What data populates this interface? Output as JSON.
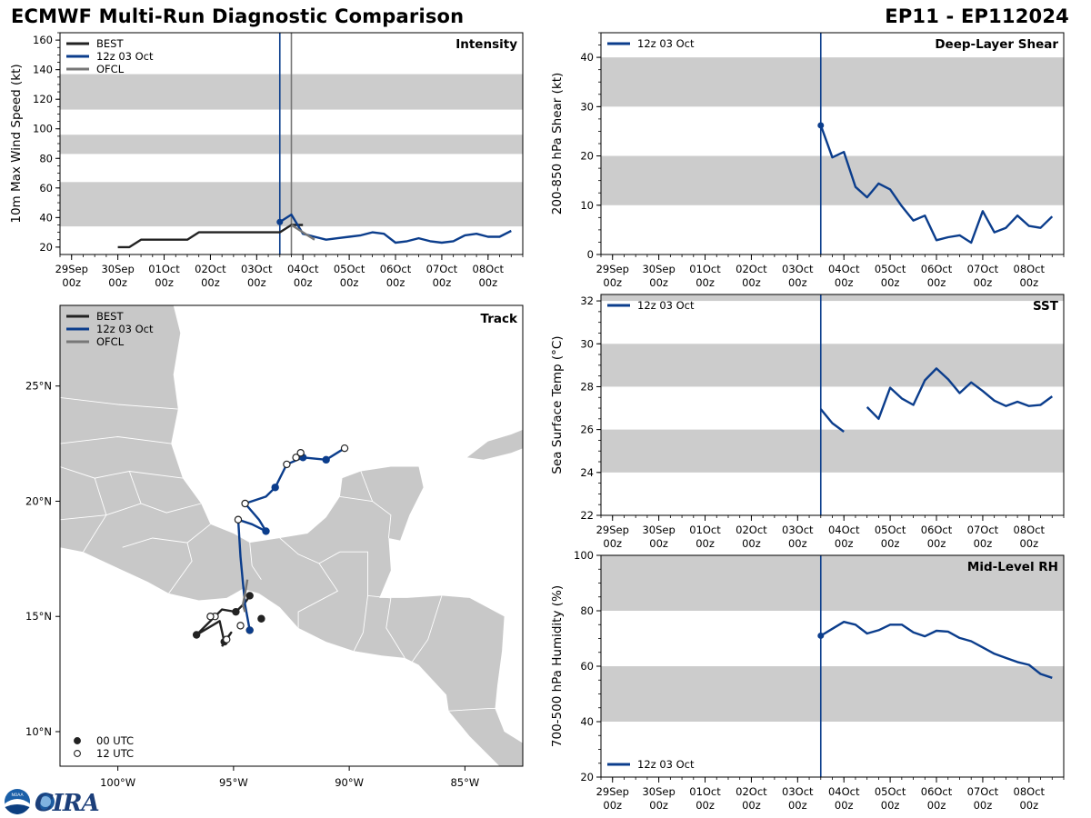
{
  "header": {
    "title": "ECMWF Multi-Run Diagnostic Comparison",
    "storm_id": "EP11 - EP112024"
  },
  "colors": {
    "best": "#222222",
    "run": "#0b3d8c",
    "ofcl": "#777777",
    "band": "#cccccc",
    "land": "#c8c8c8",
    "border": "#ffffff"
  },
  "time_axis": {
    "tick_labels": [
      [
        "29Sep",
        "00z"
      ],
      [
        "30Sep",
        "00z"
      ],
      [
        "01Oct",
        "00z"
      ],
      [
        "02Oct",
        "00z"
      ],
      [
        "03Oct",
        "00z"
      ],
      [
        "04Oct",
        "00z"
      ],
      [
        "05Oct",
        "00z"
      ],
      [
        "06Oct",
        "00z"
      ],
      [
        "07Oct",
        "00z"
      ],
      [
        "08Oct",
        "00z"
      ]
    ]
  },
  "legend": {
    "best": "BEST",
    "run": "12z 03 Oct",
    "ofcl": "OFCL",
    "utc00": "00 UTC",
    "utc12": "12 UTC"
  },
  "logo": {
    "text": "CIRA",
    "noaa": "NOAA"
  },
  "chart_data": [
    {
      "id": "intensity",
      "type": "line",
      "title": "Intensity",
      "ylabel": "10m Max Wind Speed (kt)",
      "ylim": [
        15,
        165
      ],
      "yticks": [
        20,
        40,
        60,
        80,
        100,
        120,
        140,
        160
      ],
      "xlim": [
        -0.25,
        9.75
      ],
      "x_unit": "days since 29Sep 00z",
      "bands": [
        [
          34,
          64
        ],
        [
          83,
          96
        ],
        [
          113,
          137
        ]
      ],
      "vlines": [
        {
          "x": 4.5,
          "series": "12z 03 Oct"
        },
        {
          "x": 4.75,
          "series": "OFCL"
        }
      ],
      "legend_placement": "upper-left",
      "series": [
        {
          "name": "BEST",
          "x": [
            1.0,
            1.25,
            1.5,
            1.75,
            2.0,
            2.25,
            2.5,
            2.75,
            3.0,
            3.25,
            3.5,
            3.75,
            4.0,
            4.25,
            4.5,
            4.75,
            5.0
          ],
          "y": [
            20,
            20,
            25,
            25,
            25,
            25,
            25,
            30,
            30,
            30,
            30,
            30,
            30,
            30,
            30,
            35,
            35
          ]
        },
        {
          "name": "12z 03 Oct",
          "x": [
            4.5,
            4.75,
            5.0,
            5.25,
            5.5,
            5.75,
            6.0,
            6.25,
            6.5,
            6.75,
            7.0,
            7.25,
            7.5,
            7.75,
            8.0,
            8.25,
            8.5,
            8.75,
            9.0,
            9.25,
            9.5
          ],
          "y": [
            37,
            42,
            29,
            27,
            25,
            26,
            27,
            28,
            30,
            29,
            23,
            24,
            26,
            24,
            23,
            24,
            28,
            29,
            27,
            27,
            31
          ],
          "marker_at_start": true
        },
        {
          "name": "OFCL",
          "x": [
            4.75,
            5.0,
            5.25
          ],
          "y": [
            35,
            30,
            25
          ]
        }
      ]
    },
    {
      "id": "shear",
      "type": "line",
      "title": "Deep-Layer Shear",
      "ylabel": "200-850 hPa Shear (kt)",
      "ylim": [
        0,
        45
      ],
      "yticks": [
        0,
        10,
        20,
        30,
        40
      ],
      "xlim": [
        -0.25,
        9.75
      ],
      "x_unit": "days since 29Sep 00z",
      "bands": [
        [
          10,
          20
        ],
        [
          30,
          40
        ]
      ],
      "vlines": [
        {
          "x": 4.5,
          "series": "12z 03 Oct"
        }
      ],
      "legend_placement": "upper-left",
      "series": [
        {
          "name": "12z 03 Oct",
          "x": [
            4.5,
            4.75,
            5.0,
            5.25,
            5.5,
            5.75,
            6.0,
            6.25,
            6.5,
            6.75,
            7.0,
            7.25,
            7.5,
            7.75,
            8.0,
            8.25,
            8.5,
            8.75,
            9.0,
            9.25,
            9.5
          ],
          "y": [
            26.2,
            19.7,
            20.8,
            13.7,
            11.6,
            14.4,
            13.2,
            9.8,
            6.9,
            7.9,
            2.9,
            3.5,
            3.9,
            2.4,
            8.8,
            4.5,
            5.4,
            7.9,
            5.8,
            5.4,
            7.7
          ],
          "marker_at_start": true
        }
      ]
    },
    {
      "id": "sst",
      "type": "line",
      "title": "SST",
      "ylabel": "Sea Surface Temp (°C)",
      "ylim": [
        22,
        32.3
      ],
      "yticks": [
        22,
        24,
        26,
        28,
        30,
        32
      ],
      "xlim": [
        -0.25,
        9.75
      ],
      "x_unit": "days since 29Sep 00z",
      "bands": [
        [
          24,
          26
        ],
        [
          28,
          30
        ],
        [
          32,
          34
        ]
      ],
      "vlines": [
        {
          "x": 4.5,
          "series": "12z 03 Oct"
        }
      ],
      "legend_placement": "upper-left",
      "series": [
        {
          "name": "12z 03 Oct",
          "segments": [
            {
              "x": [
                4.5,
                4.75,
                5.0
              ],
              "y": [
                26.95,
                26.3,
                25.9
              ]
            },
            {
              "x": [
                5.5,
                5.75,
                6.0,
                6.25,
                6.5,
                6.75,
                7.0,
                7.25,
                7.5,
                7.75,
                8.0,
                8.25,
                8.5,
                8.75,
                9.0,
                9.25,
                9.5
              ],
              "y": [
                27.05,
                26.5,
                27.95,
                27.45,
                27.15,
                28.3,
                28.85,
                28.35,
                27.7,
                28.2,
                27.8,
                27.35,
                27.1,
                27.3,
                27.1,
                27.15,
                27.55
              ]
            }
          ]
        }
      ]
    },
    {
      "id": "rh",
      "type": "line",
      "title": "Mid-Level RH",
      "ylabel": "700-500 hPa Humidity (%)",
      "ylim": [
        20,
        100
      ],
      "yticks": [
        20,
        40,
        60,
        80,
        100
      ],
      "xlim": [
        -0.25,
        9.75
      ],
      "x_unit": "days since 29Sep 00z",
      "bands": [
        [
          40,
          60
        ],
        [
          80,
          100
        ]
      ],
      "vlines": [
        {
          "x": 4.5,
          "series": "12z 03 Oct"
        }
      ],
      "legend_placement": "lower-left",
      "series": [
        {
          "name": "12z 03 Oct",
          "x": [
            4.5,
            4.75,
            5.0,
            5.25,
            5.5,
            5.75,
            6.0,
            6.25,
            6.5,
            6.75,
            7.0,
            7.25,
            7.5,
            7.75,
            8.0,
            8.25,
            8.5,
            8.75,
            9.0,
            9.25,
            9.5
          ],
          "y": [
            71,
            73.5,
            76,
            75,
            71.8,
            73,
            75,
            75,
            72.2,
            70.8,
            72.8,
            72.5,
            70.2,
            69,
            66.8,
            64.5,
            63,
            61.5,
            60.5,
            57.2,
            55.8
          ],
          "marker_at_start": true
        }
      ]
    },
    {
      "id": "track",
      "type": "scatter",
      "title": "Track",
      "lon_ticks": [
        -100,
        -95,
        -90,
        -85
      ],
      "lon_labels": [
        "100°W",
        "95°W",
        "90°W",
        "85°W"
      ],
      "lat_ticks": [
        10,
        15,
        20,
        25
      ],
      "lat_labels": [
        "10°N",
        "15°N",
        "20°N",
        "25°N"
      ],
      "xlim": [
        -102.5,
        -82.5
      ],
      "ylim": [
        8.5,
        28.5
      ],
      "legend_placement": "upper-left",
      "series": [
        {
          "name": "BEST",
          "points": [
            {
              "lon": -95.5,
              "lat": 13.7,
              "utc": ""
            },
            {
              "lon": -95.1,
              "lat": 14.3,
              "utc": ""
            },
            {
              "lon": -95.4,
              "lat": 13.9,
              "utc": "00"
            },
            {
              "lon": -95.6,
              "lat": 14.8,
              "utc": ""
            },
            {
              "lon": -96.6,
              "lat": 14.2,
              "utc": "00"
            },
            {
              "lon": -96.2,
              "lat": 14.6,
              "utc": ""
            },
            {
              "lon": -95.8,
              "lat": 15.0,
              "utc": "12"
            },
            {
              "lon": -95.5,
              "lat": 15.3,
              "utc": ""
            },
            {
              "lon": -94.9,
              "lat": 15.2,
              "utc": "00"
            },
            {
              "lon": -94.5,
              "lat": 15.6,
              "utc": ""
            },
            {
              "lon": -94.3,
              "lat": 15.9,
              "utc": "00"
            }
          ]
        },
        {
          "name": "12z 03 Oct",
          "points": [
            {
              "lon": -94.3,
              "lat": 14.4,
              "utc": "12"
            },
            {
              "lon": -94.5,
              "lat": 15.5,
              "utc": ""
            },
            {
              "lon": -94.6,
              "lat": 16.5,
              "utc": ""
            },
            {
              "lon": -94.7,
              "lat": 17.6,
              "utc": ""
            },
            {
              "lon": -94.8,
              "lat": 19.2,
              "utc": "12"
            },
            {
              "lon": -94.2,
              "lat": 19.0,
              "utc": ""
            },
            {
              "lon": -93.6,
              "lat": 18.7,
              "utc": "00"
            },
            {
              "lon": -93.9,
              "lat": 19.2,
              "utc": ""
            },
            {
              "lon": -94.5,
              "lat": 19.9,
              "utc": "12"
            },
            {
              "lon": -93.6,
              "lat": 20.2,
              "utc": ""
            },
            {
              "lon": -93.2,
              "lat": 20.6,
              "utc": "00"
            },
            {
              "lon": -92.7,
              "lat": 21.6,
              "utc": "12"
            },
            {
              "lon": -92.0,
              "lat": 21.9,
              "utc": "00"
            },
            {
              "lon": -91.0,
              "lat": 21.8,
              "utc": "00"
            },
            {
              "lon": -90.2,
              "lat": 22.3,
              "utc": "12"
            }
          ]
        },
        {
          "name": "OFCL",
          "points": [
            {
              "lon": -94.5,
              "lat": 15.2,
              "utc": ""
            },
            {
              "lon": -94.6,
              "lat": 15.5,
              "utc": ""
            },
            {
              "lon": -94.5,
              "lat": 16.0,
              "utc": ""
            },
            {
              "lon": -94.4,
              "lat": 16.6,
              "utc": ""
            }
          ]
        }
      ],
      "extra_markers": [
        {
          "lon": -94.7,
          "lat": 14.6,
          "utc": "12"
        },
        {
          "lon": -95.3,
          "lat": 14.0,
          "utc": "12"
        },
        {
          "lon": -96.0,
          "lat": 15.0,
          "utc": "12"
        },
        {
          "lon": -93.8,
          "lat": 14.9,
          "utc": "00"
        },
        {
          "lon": -92.1,
          "lat": 22.1,
          "utc": "12"
        },
        {
          "lon": -92.3,
          "lat": 21.9,
          "utc": "12"
        }
      ]
    }
  ]
}
